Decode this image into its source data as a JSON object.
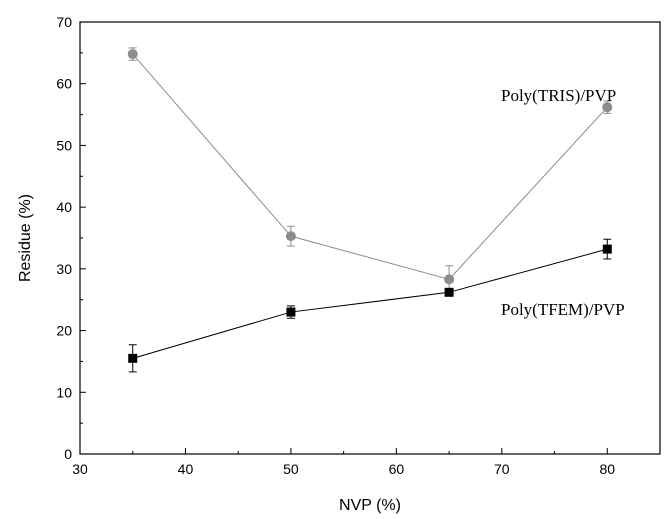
{
  "chart_data": {
    "type": "line",
    "xlabel": "NVP (%)",
    "ylabel": "Residue (%)",
    "xlim": [
      30,
      85
    ],
    "ylim": [
      0,
      70
    ],
    "x_ticks": [
      30,
      40,
      50,
      60,
      70,
      80
    ],
    "y_ticks": [
      0,
      10,
      20,
      30,
      40,
      50,
      60,
      70
    ],
    "grid": false,
    "series": [
      {
        "name": "Poly(TRIS)/PVP",
        "marker": "circle",
        "color": "#8c8c8c",
        "x": [
          35,
          50,
          65,
          80
        ],
        "y": [
          64.8,
          35.3,
          28.3,
          56.2
        ],
        "err": [
          1.0,
          1.6,
          2.2,
          1.0
        ]
      },
      {
        "name": "Poly(TFEM)/PVP",
        "marker": "square",
        "color": "#000000",
        "x": [
          35,
          50,
          65,
          80
        ],
        "y": [
          15.5,
          23.0,
          26.2,
          33.2
        ],
        "err": [
          2.2,
          1.0,
          0.6,
          1.6
        ]
      }
    ]
  }
}
